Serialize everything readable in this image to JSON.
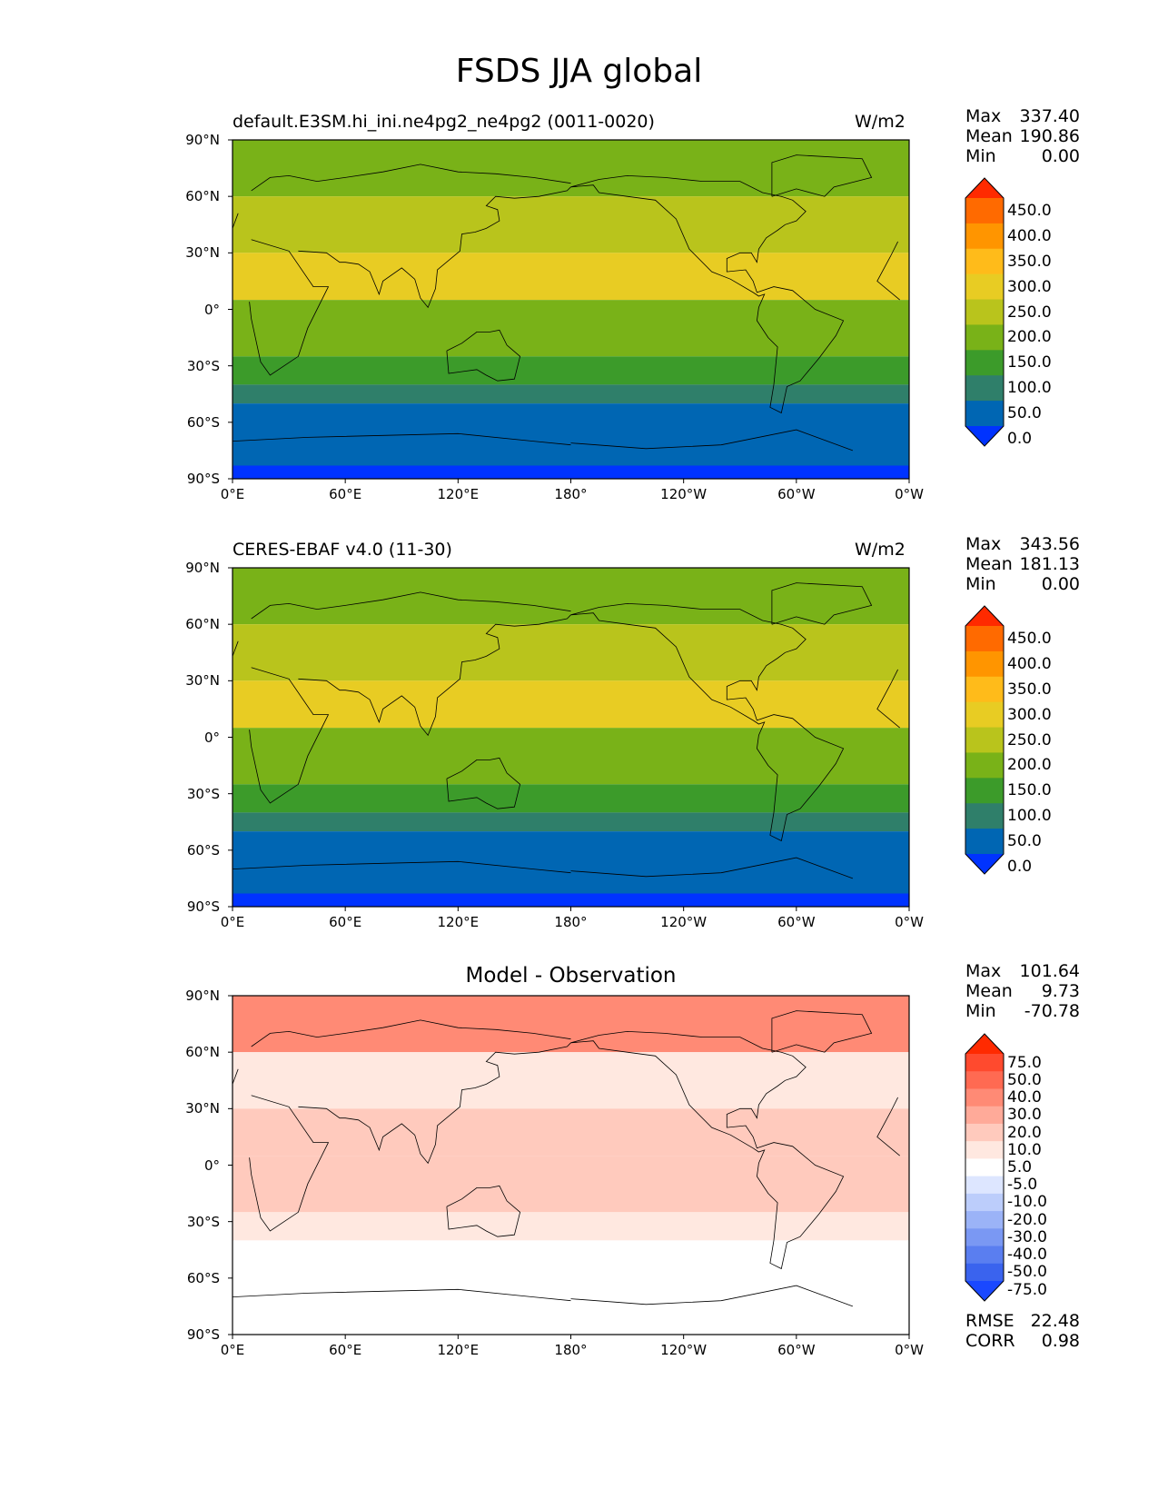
{
  "figure": {
    "title": "FSDS JJA global",
    "lat_ticks": [
      "90°N",
      "60°N",
      "30°N",
      "0°",
      "30°S",
      "60°S",
      "90°S"
    ],
    "lon_ticks": [
      "0°E",
      "60°E",
      "120°E",
      "180°",
      "120°W",
      "60°W",
      "0°W"
    ]
  },
  "panels": [
    {
      "id": "model",
      "title_left": "default.E3SM.hi_ini.ne4pg2_ne4pg2 (0011-0020)",
      "title_center": "",
      "units": "W/m2",
      "stats": [
        {
          "label": "Max",
          "value": "337.40"
        },
        {
          "label": "Mean",
          "value": "190.86"
        },
        {
          "label": "Min",
          "value": "0.00"
        }
      ],
      "colorbar": {
        "labels": [
          "450.0",
          "400.0",
          "350.0",
          "300.0",
          "250.0",
          "200.0",
          "150.0",
          "100.0",
          "50.0",
          "0.0"
        ],
        "colors": [
          "#ff2a00",
          "#ff6a00",
          "#ff9500",
          "#ffbb1a",
          "#e8cc23",
          "#b9c41c",
          "#79b218",
          "#3c9b2a",
          "#2f7f6a",
          "#0066b3",
          "#0033ff"
        ]
      },
      "extra_stats": []
    },
    {
      "id": "obs",
      "title_left": "CERES-EBAF v4.0 (11-30)",
      "title_center": "",
      "units": "W/m2",
      "stats": [
        {
          "label": "Max",
          "value": "343.56"
        },
        {
          "label": "Mean",
          "value": "181.13"
        },
        {
          "label": "Min",
          "value": "0.00"
        }
      ],
      "colorbar": {
        "labels": [
          "450.0",
          "400.0",
          "350.0",
          "300.0",
          "250.0",
          "200.0",
          "150.0",
          "100.0",
          "50.0",
          "0.0"
        ],
        "colors": [
          "#ff2a00",
          "#ff6a00",
          "#ff9500",
          "#ffbb1a",
          "#e8cc23",
          "#b9c41c",
          "#79b218",
          "#3c9b2a",
          "#2f7f6a",
          "#0066b3",
          "#0033ff"
        ]
      },
      "extra_stats": []
    },
    {
      "id": "diff",
      "title_left": "",
      "title_center": "Model - Observation",
      "units": "",
      "stats": [
        {
          "label": "Max",
          "value": "101.64"
        },
        {
          "label": "Mean",
          "value": "9.73"
        },
        {
          "label": "Min",
          "value": "-70.78"
        }
      ],
      "colorbar": {
        "labels": [
          "75.0",
          "50.0",
          "40.0",
          "30.0",
          "20.0",
          "10.0",
          "5.0",
          "-5.0",
          "-10.0",
          "-20.0",
          "-30.0",
          "-40.0",
          "-50.0",
          "-75.0"
        ],
        "colors": [
          "#ff2a00",
          "#ff4a2e",
          "#ff6a52",
          "#ff8a75",
          "#ffaa99",
          "#ffcabd",
          "#ffe8e0",
          "#ffffff",
          "#dde6ff",
          "#bccdfb",
          "#9bb3f7",
          "#7a98f3",
          "#5a7ef0",
          "#3a63ee",
          "#1a48ff"
        ]
      },
      "extra_stats": [
        {
          "label": "RMSE",
          "value": "22.48"
        },
        {
          "label": "CORR",
          "value": "0.98"
        }
      ]
    }
  ]
}
